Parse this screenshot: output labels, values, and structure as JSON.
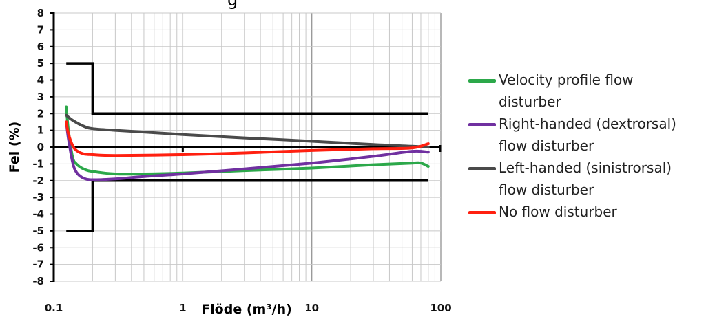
{
  "title_fragment": "g",
  "chart_data": {
    "type": "line",
    "x_scale": "log",
    "xlim": [
      0.1,
      100
    ],
    "ylim": [
      -8,
      8
    ],
    "xlabel": "Flöde (m³/h)",
    "ylabel": "Fel (%)",
    "x_ticks": [
      {
        "value": 0.1,
        "label": "0.1"
      },
      {
        "value": 1,
        "label": "1"
      },
      {
        "value": 10,
        "label": "10"
      },
      {
        "value": 100,
        "label": "100"
      }
    ],
    "y_ticks": [
      {
        "value": 8,
        "label": "8"
      },
      {
        "value": 7,
        "label": "7"
      },
      {
        "value": 6,
        "label": "6"
      },
      {
        "value": 5,
        "label": "5"
      },
      {
        "value": 4,
        "label": "4"
      },
      {
        "value": 3,
        "label": "3"
      },
      {
        "value": 2,
        "label": "2"
      },
      {
        "value": 1,
        "label": "1"
      },
      {
        "value": 0,
        "label": "0"
      },
      {
        "value": -1,
        "label": "-1"
      },
      {
        "value": -2,
        "label": "-2"
      },
      {
        "value": -3,
        "label": "-3"
      },
      {
        "value": -4,
        "label": "-4"
      },
      {
        "value": -5,
        "label": "-5"
      },
      {
        "value": -6,
        "label": "-6"
      },
      {
        "value": -7,
        "label": "-7"
      },
      {
        "value": -8,
        "label": "-8"
      }
    ],
    "grid": true,
    "legend_position": "right",
    "tolerance_limits": [
      {
        "x": [
          0.125,
          0.2,
          0.2,
          80
        ],
        "y": [
          5,
          5,
          2,
          2
        ]
      },
      {
        "x": [
          0.125,
          0.2,
          0.2,
          80
        ],
        "y": [
          -5,
          -5,
          -2,
          -2
        ]
      }
    ],
    "zero_line": {
      "x": [
        0.1,
        100
      ],
      "y": [
        0,
        0
      ]
    },
    "series": [
      {
        "name": "Velocity profile flow disturber",
        "color": "#2ca84a",
        "x": [
          0.125,
          0.13,
          0.14,
          0.15,
          0.17,
          0.2,
          0.3,
          0.5,
          1,
          3,
          10,
          30,
          60,
          70,
          80
        ],
        "y": [
          2.4,
          1.0,
          -0.6,
          -1.0,
          -1.3,
          -1.45,
          -1.6,
          -1.6,
          -1.55,
          -1.4,
          -1.25,
          -1.05,
          -0.95,
          -0.95,
          -1.15
        ]
      },
      {
        "name": "Right-handed (dextrorsal) flow disturber",
        "color": "#7030a0",
        "x": [
          0.125,
          0.13,
          0.14,
          0.15,
          0.17,
          0.2,
          0.3,
          0.5,
          1,
          3,
          10,
          30,
          60,
          80
        ],
        "y": [
          1.5,
          0.5,
          -0.9,
          -1.5,
          -1.85,
          -1.95,
          -1.9,
          -1.75,
          -1.6,
          -1.3,
          -0.95,
          -0.55,
          -0.25,
          -0.3
        ]
      },
      {
        "name": "Left-handed (sinistrorsal) flow disturber",
        "color": "#4a4a4a",
        "x": [
          0.125,
          0.14,
          0.17,
          0.2,
          0.3,
          0.5,
          1,
          3,
          10,
          30,
          60,
          80
        ],
        "y": [
          1.9,
          1.6,
          1.25,
          1.1,
          1.0,
          0.9,
          0.75,
          0.55,
          0.35,
          0.15,
          0.05,
          0.0
        ]
      },
      {
        "name": "No flow disturber",
        "color": "#ff2010",
        "x": [
          0.125,
          0.13,
          0.14,
          0.15,
          0.17,
          0.2,
          0.3,
          1,
          3,
          10,
          30,
          60,
          80
        ],
        "y": [
          1.5,
          0.8,
          0.1,
          -0.2,
          -0.4,
          -0.45,
          -0.5,
          -0.45,
          -0.35,
          -0.2,
          -0.1,
          -0.05,
          0.2
        ]
      }
    ]
  },
  "legend": {
    "items": [
      {
        "lines": [
          "Velocity profile flow",
          "disturber"
        ],
        "color": "#2ca84a"
      },
      {
        "lines": [
          "Right-handed (dextrorsal)",
          "flow disturber"
        ],
        "color": "#7030a0"
      },
      {
        "lines": [
          "Left-handed (sinistrorsal)",
          "flow disturber"
        ],
        "color": "#4a4a4a"
      },
      {
        "lines": [
          "No flow disturber"
        ],
        "color": "#ff2010"
      }
    ]
  }
}
